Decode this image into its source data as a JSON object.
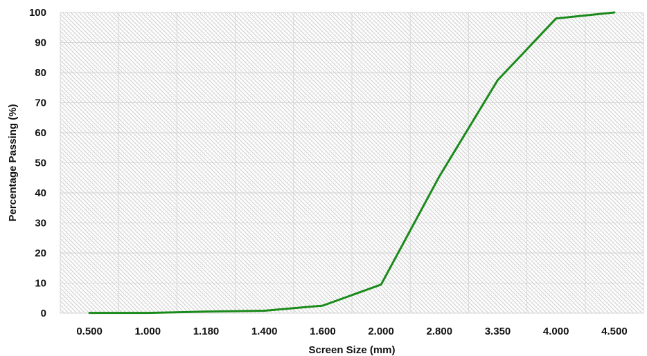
{
  "chart_data": {
    "type": "line",
    "title": "",
    "xlabel": "Screen Size (mm)",
    "ylabel": "Percentage Passing (%)",
    "categories": [
      "0.500",
      "1.000",
      "1.180",
      "1.400",
      "1.600",
      "2.000",
      "2.800",
      "3.350",
      "4.000",
      "4.500"
    ],
    "series": [
      {
        "values": [
          0.1,
          0.1,
          0.5,
          0.8,
          2.5,
          9.5,
          45.5,
          77.5,
          98,
          100
        ],
        "color": "#1a8a1a"
      }
    ],
    "yticks": [
      "0",
      "10",
      "20",
      "30",
      "40",
      "50",
      "60",
      "70",
      "80",
      "90",
      "100"
    ],
    "ylim": [
      0,
      100
    ],
    "grid": true,
    "plot_background": "hatched",
    "legend": "none"
  }
}
